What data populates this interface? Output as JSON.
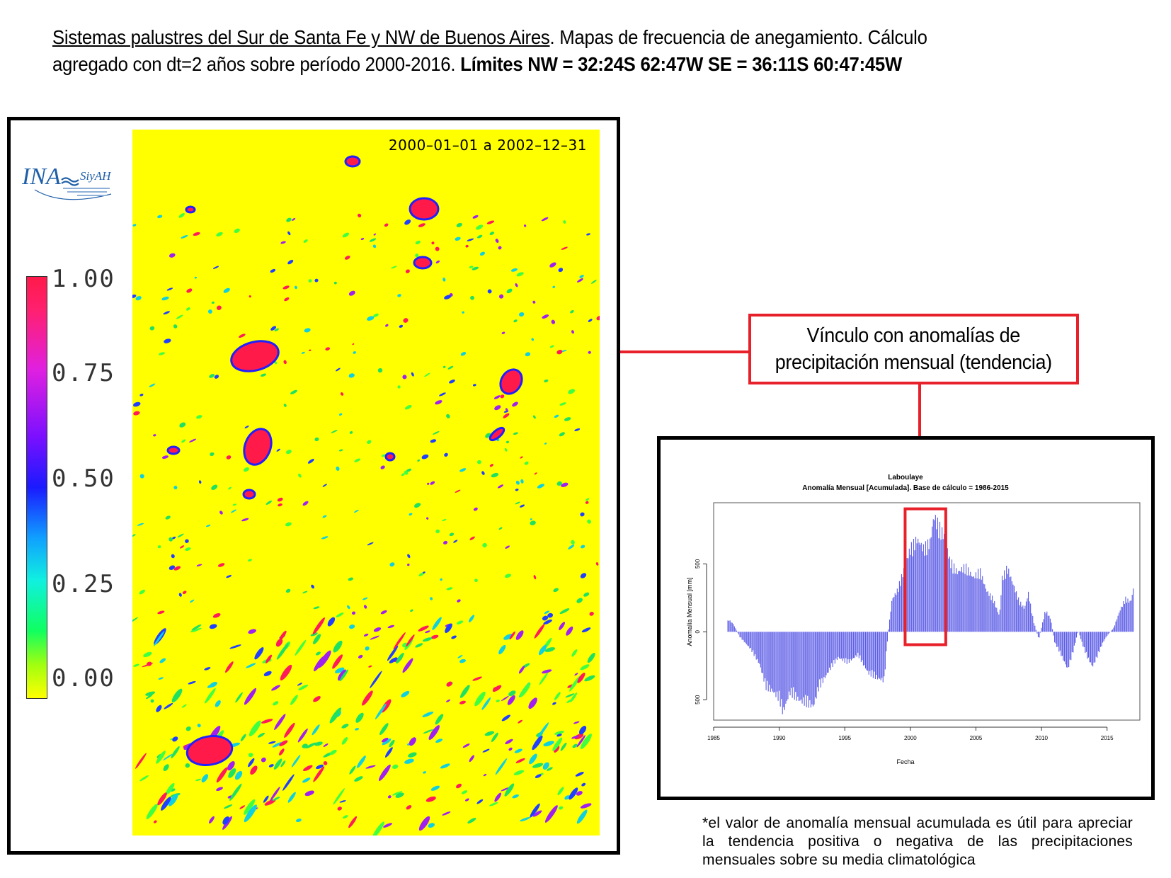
{
  "header": {
    "title_underlined": "Sistemas palustres del Sur de Santa Fe y NW de Buenos Aires",
    "title_rest": ". Mapas de frecuencia de anegamiento. Cálculo agregado con dt=2 años sobre período 2000-2016. ",
    "limits": "Límites NW = 32:24S 62:47W SE = 36:11S 60:47:45W"
  },
  "map": {
    "date_range": "2000–01–01 a 2002–12–31",
    "logo": {
      "ina": "INA",
      "siyah": "SiyAH"
    },
    "legend": {
      "labels": [
        "1.00",
        "0.75",
        "0.50",
        "0.25",
        "0.00"
      ],
      "colors": {
        "high": "#ff1a4a",
        "mid": "#1a1aff",
        "low": "#ffff00"
      }
    }
  },
  "callout": {
    "line1": "Vínculo con anomalías de",
    "line2": "precipitación mensual (tendencia)"
  },
  "chart_data": {
    "type": "bar",
    "title": "Laboulaye",
    "subtitle": "Anomalía Mensual [Acumulada]. Base de cálculo = 1986-2015",
    "xlabel": "Fecha",
    "ylabel": "Anomalía Mensual [mm]",
    "xlim": [
      1985,
      2017.5
    ],
    "ylim": [
      -650,
      950
    ],
    "x_ticks": [
      1985,
      1990,
      1995,
      2000,
      2005,
      2010,
      2015
    ],
    "y_ticks": [
      -500,
      0,
      500
    ],
    "y_tick_labels": [
      "500",
      "0",
      "500"
    ],
    "bar_color": "#5a5ae6",
    "highlight": {
      "x_from": 1999.6,
      "x_to": 2002.7,
      "color": "#e8202a"
    },
    "keypoints": [
      [
        1986.0,
        0
      ],
      [
        1986.1,
        100
      ],
      [
        1986.5,
        60
      ],
      [
        1987.0,
        -40
      ],
      [
        1987.8,
        -130
      ],
      [
        1988.5,
        -250
      ],
      [
        1989.0,
        -430
      ],
      [
        1989.5,
        -460
      ],
      [
        1990.0,
        -520
      ],
      [
        1990.3,
        -630
      ],
      [
        1990.8,
        -470
      ],
      [
        1991.5,
        -530
      ],
      [
        1992.2,
        -560
      ],
      [
        1992.6,
        -580
      ],
      [
        1993.0,
        -440
      ],
      [
        1993.8,
        -300
      ],
      [
        1994.5,
        -200
      ],
      [
        1995.2,
        -240
      ],
      [
        1996.0,
        -180
      ],
      [
        1996.8,
        -320
      ],
      [
        1997.5,
        -360
      ],
      [
        1998.0,
        -380
      ],
      [
        1998.3,
        -10
      ],
      [
        1998.6,
        250
      ],
      [
        1999.0,
        320
      ],
      [
        1999.5,
        480
      ],
      [
        2000.0,
        650
      ],
      [
        2000.5,
        720
      ],
      [
        2001.0,
        650
      ],
      [
        2001.5,
        700
      ],
      [
        2001.8,
        900
      ],
      [
        2002.2,
        820
      ],
      [
        2002.6,
        740
      ],
      [
        2003.0,
        560
      ],
      [
        2003.6,
        460
      ],
      [
        2004.2,
        510
      ],
      [
        2004.8,
        420
      ],
      [
        2005.3,
        480
      ],
      [
        2005.8,
        320
      ],
      [
        2006.3,
        260
      ],
      [
        2006.8,
        120
      ],
      [
        2007.0,
        420
      ],
      [
        2007.4,
        500
      ],
      [
        2007.8,
        380
      ],
      [
        2008.3,
        240
      ],
      [
        2008.7,
        180
      ],
      [
        2009.0,
        300
      ],
      [
        2009.4,
        80
      ],
      [
        2009.8,
        -60
      ],
      [
        2010.3,
        170
      ],
      [
        2010.7,
        100
      ],
      [
        2011.0,
        -80
      ],
      [
        2011.5,
        -180
      ],
      [
        2012.0,
        -290
      ],
      [
        2012.4,
        -160
      ],
      [
        2012.8,
        10
      ],
      [
        2013.2,
        -120
      ],
      [
        2013.5,
        -200
      ],
      [
        2013.9,
        -270
      ],
      [
        2014.3,
        -180
      ],
      [
        2014.7,
        -80
      ],
      [
        2015.0,
        -30
      ],
      [
        2015.5,
        30
      ],
      [
        2016.0,
        170
      ],
      [
        2016.4,
        260
      ],
      [
        2016.8,
        230
      ],
      [
        2017.0,
        330
      ]
    ]
  },
  "footnote": "*el valor de anomalía mensual acumulada es útil para apreciar la tendencia positiva o negativa de las precipitaciones mensuales sobre su media climatológica"
}
